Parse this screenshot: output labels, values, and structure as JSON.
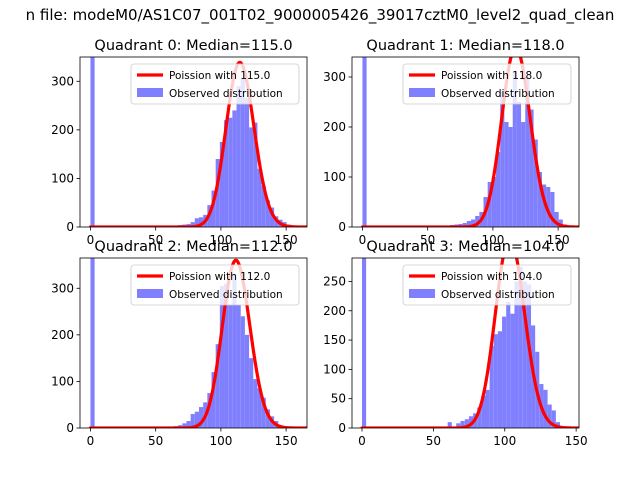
{
  "figure": {
    "suptitle": "n file: modeM0/AS1C07_001T02_9000005426_39017cztM0_level2_quad_clean"
  },
  "colors": {
    "curve": "#ff0000",
    "bars": "#8080ff"
  },
  "chart_data": [
    {
      "type": "bar",
      "title": "Quadrant 0: Median=115.0",
      "median": 115.0,
      "xlim": [
        -8,
        166
      ],
      "ylim": [
        0,
        350
      ],
      "xticks": [
        0,
        50,
        100,
        150
      ],
      "yticks": [
        0,
        100,
        200,
        300
      ],
      "legend_placement": "upper right",
      "series": [
        {
          "name": "Poission with 115.0",
          "kind": "line"
        },
        {
          "name": "Observed distribution",
          "kind": "histogram"
        }
      ],
      "bin_width": 3.2,
      "bin_starts": [
        0,
        64,
        67.2,
        70.4,
        73.6,
        76.8,
        80,
        83.2,
        86.4,
        89.6,
        92.8,
        96,
        99.2,
        102.4,
        105.6,
        108.8,
        112,
        115.2,
        118.4,
        121.6,
        124.8,
        128,
        131.2,
        134.4,
        137.6,
        140.8,
        144,
        147.2,
        150.4,
        153.6,
        156.8
      ],
      "counts": [
        2000,
        3,
        4,
        5,
        6,
        10,
        18,
        20,
        25,
        45,
        75,
        140,
        175,
        220,
        225,
        240,
        290,
        305,
        265,
        205,
        215,
        120,
        85,
        55,
        40,
        22,
        15,
        10,
        5,
        3,
        1
      ]
    },
    {
      "type": "bar",
      "title": "Quadrant 1: Median=118.0",
      "median": 118.0,
      "xlim": [
        -8,
        166
      ],
      "ylim": [
        0,
        340
      ],
      "xticks": [
        0,
        50,
        100,
        150
      ],
      "yticks": [
        0,
        100,
        200,
        300
      ],
      "legend_placement": "upper right",
      "series": [
        {
          "name": "Poission with 118.0",
          "kind": "line"
        },
        {
          "name": "Observed distribution",
          "kind": "histogram"
        }
      ],
      "bin_width": 3.2,
      "bin_starts": [
        0,
        64,
        67.2,
        70.4,
        73.6,
        76.8,
        80,
        83.2,
        86.4,
        89.6,
        92.8,
        96,
        99.2,
        102.4,
        105.6,
        108.8,
        112,
        115.2,
        118.4,
        121.6,
        124.8,
        128,
        131.2,
        134.4,
        137.6,
        140.8,
        144,
        147.2,
        150.4,
        153.6,
        156.8
      ],
      "counts": [
        2000,
        2,
        4,
        5,
        6,
        8,
        12,
        15,
        22,
        30,
        60,
        90,
        100,
        150,
        270,
        210,
        200,
        310,
        250,
        210,
        300,
        235,
        175,
        110,
        85,
        80,
        70,
        30,
        15,
        5,
        2
      ]
    },
    {
      "type": "bar",
      "title": "Quadrant 2: Median=112.0",
      "median": 112.0,
      "xlim": [
        -8,
        166
      ],
      "ylim": [
        0,
        365
      ],
      "xticks": [
        0,
        50,
        100,
        150
      ],
      "yticks": [
        0,
        100,
        200,
        300
      ],
      "legend_placement": "upper right",
      "series": [
        {
          "name": "Poission with 112.0",
          "kind": "line"
        },
        {
          "name": "Observed distribution",
          "kind": "histogram"
        }
      ],
      "bin_width": 3.2,
      "bin_starts": [
        0,
        57.6,
        64,
        67.2,
        70.4,
        73.6,
        76.8,
        80,
        83.2,
        86.4,
        89.6,
        92.8,
        96,
        99.2,
        102.4,
        105.6,
        108.8,
        112,
        115.2,
        118.4,
        121.6,
        124.8,
        128,
        131.2,
        134.4,
        137.6,
        140.8,
        144,
        147.2
      ],
      "counts": [
        2000,
        3,
        4,
        6,
        10,
        15,
        30,
        35,
        45,
        55,
        75,
        120,
        180,
        305,
        310,
        265,
        330,
        265,
        240,
        200,
        150,
        105,
        85,
        65,
        40,
        25,
        15,
        5,
        3
      ]
    },
    {
      "type": "bar",
      "title": "Quadrant 3: Median=104.0",
      "median": 104.0,
      "xlim": [
        -7,
        152
      ],
      "ylim": [
        0,
        290
      ],
      "xticks": [
        0,
        50,
        100,
        150
      ],
      "yticks": [
        0,
        50,
        100,
        150,
        200,
        250
      ],
      "legend_placement": "upper right",
      "series": [
        {
          "name": "Poission with 104.0",
          "kind": "line"
        },
        {
          "name": "Observed distribution",
          "kind": "histogram"
        }
      ],
      "bin_width": 2.9,
      "bin_starts": [
        0,
        60,
        66,
        69,
        72,
        74.9,
        77.8,
        80.7,
        83.6,
        86.5,
        89.4,
        92.3,
        95.2,
        98.1,
        101,
        103.9,
        106.8,
        109.7,
        112.6,
        115.5,
        118.4,
        121.3,
        124.2,
        127.1,
        130,
        132.9,
        135.8
      ],
      "counts": [
        2000,
        10,
        8,
        12,
        15,
        20,
        25,
        35,
        55,
        65,
        140,
        160,
        165,
        190,
        215,
        195,
        250,
        275,
        250,
        245,
        175,
        130,
        75,
        65,
        40,
        30,
        10
      ]
    }
  ]
}
